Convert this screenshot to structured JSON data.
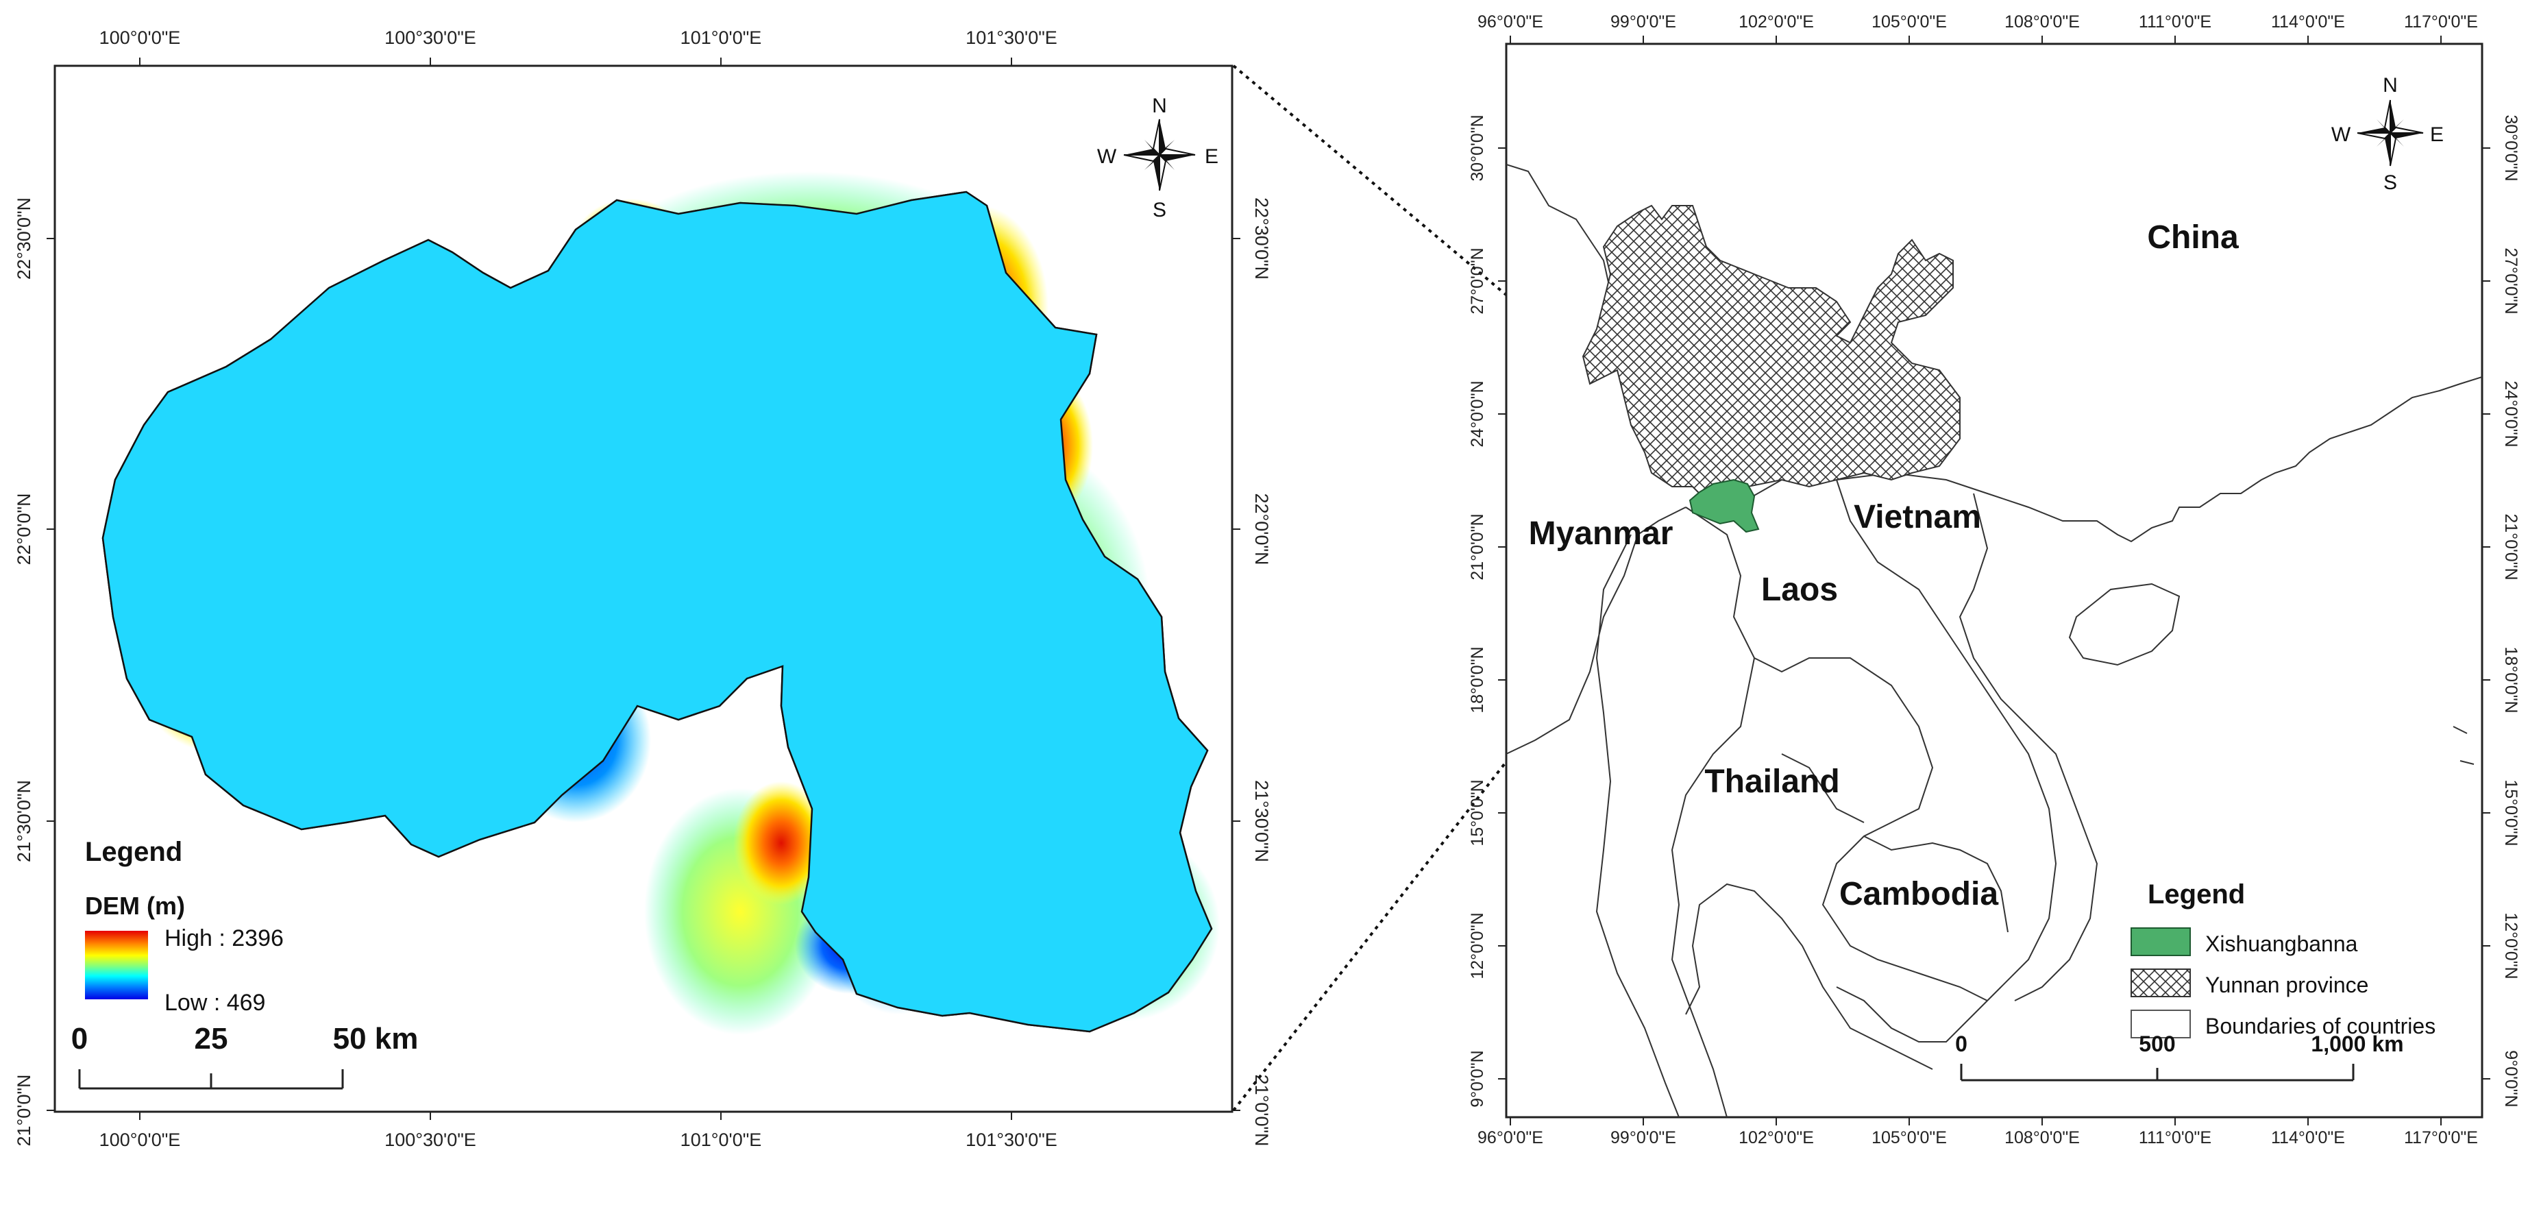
{
  "left_map": {
    "top_lon_labels": [
      "100°0'0\"E",
      "100°30'0\"E",
      "101°0'0\"E",
      "101°30'0\"E"
    ],
    "bottom_lon_labels": [
      "100°0'0\"E",
      "100°30'0\"E",
      "101°0'0\"E",
      "101°30'0\"E"
    ],
    "lat_labels": [
      "22°30'0\"N",
      "22°0'0\"N",
      "21°30'0\"N",
      "21°0'0\"N"
    ],
    "legend": {
      "title": "Legend",
      "subtitle": "DEM (m)",
      "high_label": "High : 2396",
      "low_label": "Low : 469",
      "ramp_colors": [
        "#e60000",
        "#ff7f00",
        "#ffff00",
        "#80ff80",
        "#00ffff",
        "#0080ff",
        "#0000e6"
      ]
    },
    "scale_bar": {
      "ticks": [
        "0",
        "25",
        "50 km"
      ]
    },
    "compass": {
      "n": "N",
      "s": "S",
      "e": "E",
      "w": "W"
    }
  },
  "right_map": {
    "top_lon_labels": [
      "96°0'0\"E",
      "99°0'0\"E",
      "102°0'0\"E",
      "105°0'0\"E",
      "108°0'0\"E",
      "111°0'0\"E",
      "114°0'0\"E",
      "117°0'0\"E"
    ],
    "bottom_lon_labels": [
      "96°0'0\"E",
      "99°0'0\"E",
      "102°0'0\"E",
      "105°0'0\"E",
      "108°0'0\"E",
      "111°0'0\"E",
      "114°0'0\"E",
      "117°0'0\"E"
    ],
    "lat_labels": [
      "30°0'0\"N",
      "27°0'0\"N",
      "24°0'0\"N",
      "21°0'0\"N",
      "18°0'0\"N",
      "15°0'0\"N",
      "12°0'0\"N",
      "9°0'0\"N"
    ],
    "countries": [
      "China",
      "Myanmar",
      "Vietnam",
      "Laos",
      "Thailand",
      "Cambodia"
    ],
    "legend": {
      "title": "Legend",
      "items": [
        {
          "label": "Xishuangbanna",
          "color": "#4caf6a"
        },
        {
          "label": "Yunnan province",
          "pattern": "crosshatch"
        },
        {
          "label": "Boundaries of countries",
          "color": "#ffffff"
        }
      ]
    },
    "scale_bar": {
      "ticks": [
        "0",
        "500",
        "1,000 km"
      ]
    },
    "compass": {
      "n": "N",
      "s": "S",
      "e": "E",
      "w": "W"
    }
  }
}
